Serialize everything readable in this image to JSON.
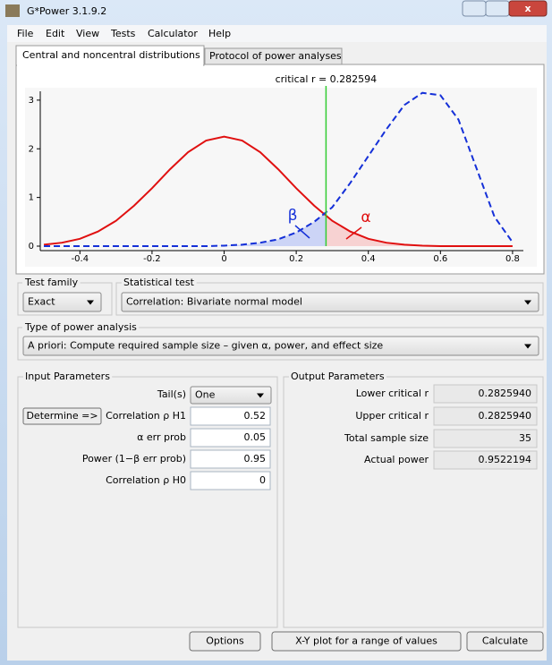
{
  "window": {
    "title": "G*Power 3.1.9.2"
  },
  "menu": [
    "File",
    "Edit",
    "View",
    "Tests",
    "Calculator",
    "Help"
  ],
  "tabs": [
    "Central and noncentral distributions",
    "Protocol of power analyses"
  ],
  "chart_data": {
    "type": "line",
    "annotation": "critical r = 0.282594",
    "critical_value": 0.282594,
    "critical_color": "#33cc33",
    "beta_label": "β",
    "alpha_label": "α",
    "x": [
      -0.5,
      -0.45,
      -0.4,
      -0.35,
      -0.3,
      -0.25,
      -0.2,
      -0.15,
      -0.1,
      -0.05,
      0,
      0.05,
      0.1,
      0.15,
      0.2,
      0.25,
      0.3,
      0.35,
      0.4,
      0.45,
      0.5,
      0.55,
      0.6,
      0.65,
      0.7,
      0.75,
      0.8
    ],
    "series": [
      {
        "color": "#e01010",
        "style": "solid",
        "values": [
          0.03,
          0.07,
          0.15,
          0.3,
          0.52,
          0.83,
          1.19,
          1.58,
          1.93,
          2.17,
          2.25,
          2.17,
          1.93,
          1.58,
          1.19,
          0.83,
          0.52,
          0.3,
          0.15,
          0.07,
          0.03,
          0.01,
          0,
          0,
          0,
          0,
          0
        ]
      },
      {
        "color": "#1530d8",
        "style": "dashed",
        "values": [
          0,
          0,
          0,
          0,
          0,
          0,
          0,
          0,
          0,
          0,
          0.01,
          0.03,
          0.07,
          0.14,
          0.28,
          0.5,
          0.8,
          1.3,
          1.85,
          2.4,
          2.9,
          3.15,
          3.1,
          2.6,
          1.6,
          0.6,
          0.08
        ]
      }
    ],
    "xlim": [
      -0.51,
      0.83
    ],
    "ylim": [
      0,
      3.2
    ],
    "xticks": [
      -0.4,
      -0.2,
      0,
      0.2,
      0.4,
      0.6,
      0.8
    ],
    "yticks": [
      0,
      1,
      2,
      3
    ]
  },
  "test_family": {
    "label": "Test family",
    "value": "Exact"
  },
  "statistical_test": {
    "label": "Statistical test",
    "value": "Correlation: Bivariate normal model"
  },
  "power_analysis": {
    "label": "Type of power analysis",
    "value": "A priori: Compute required sample size – given α, power, and effect size"
  },
  "input_parameters": {
    "title": "Input Parameters",
    "button": "Determine =>",
    "rows": [
      [
        "Tail(s)",
        "One"
      ],
      [
        "Correlation ρ H1",
        "0.52"
      ],
      [
        "α err prob",
        "0.05"
      ],
      [
        "Power (1−β err prob)",
        "0.95"
      ],
      [
        "Correlation ρ H0",
        "0"
      ]
    ]
  },
  "output_parameters": {
    "title": "Output Parameters",
    "rows": [
      [
        "Lower critical r",
        "0.2825940"
      ],
      [
        "Upper critical r",
        "0.2825940"
      ],
      [
        "Total sample size",
        "35"
      ],
      [
        "Actual power",
        "0.9522194"
      ]
    ]
  },
  "buttons": [
    "Options",
    "X-Y plot for a range of values",
    "Calculate"
  ]
}
